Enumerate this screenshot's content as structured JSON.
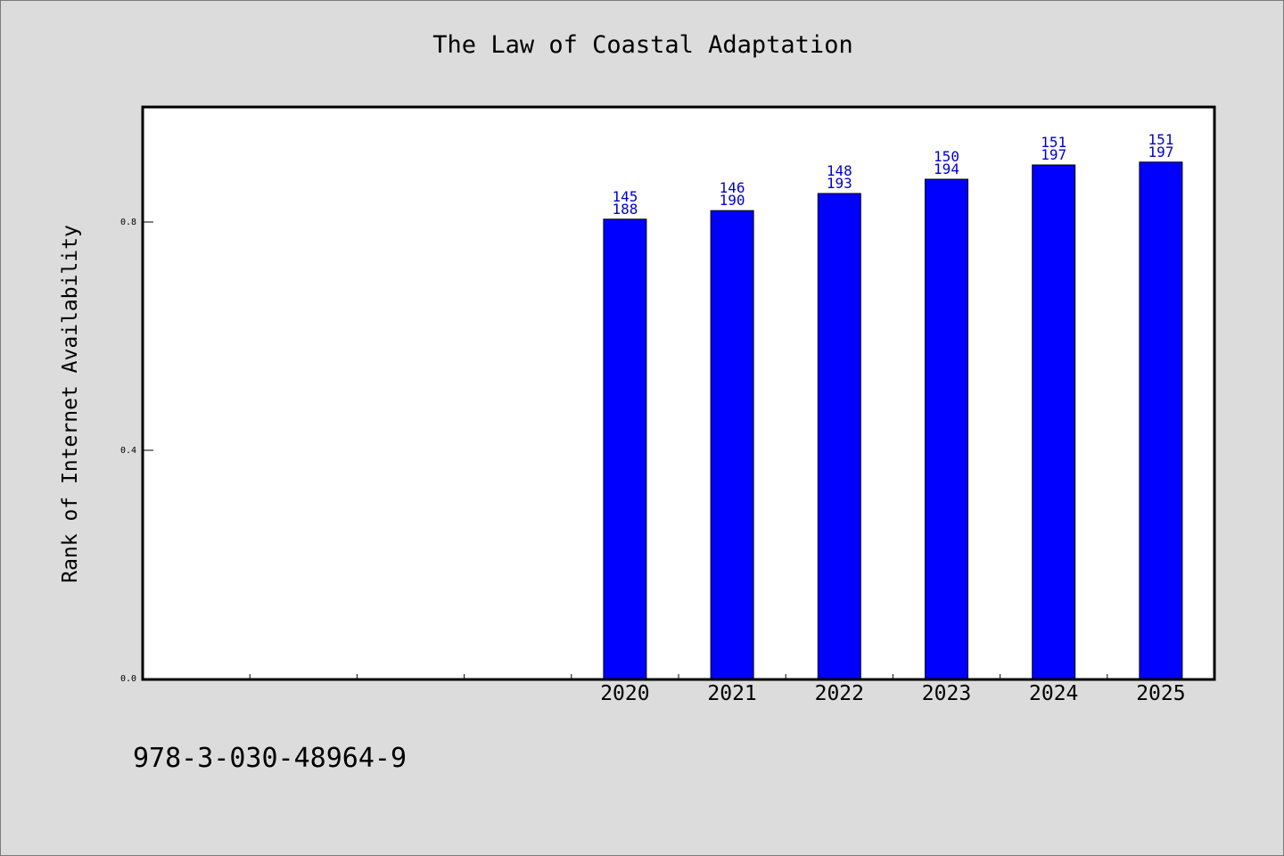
{
  "chart_data": {
    "type": "bar",
    "title": "The Law of Coastal Adaptation",
    "xlabel": "",
    "ylabel": "Rank of Internet Availability",
    "categories": [
      "",
      "",
      "",
      "",
      "2020",
      "2021",
      "2022",
      "2023",
      "2024",
      "2025"
    ],
    "values": [
      null,
      null,
      null,
      null,
      0.805,
      0.82,
      0.85,
      0.875,
      0.9,
      0.905
    ],
    "label_top": [
      "",
      "",
      "",
      "",
      "145",
      "146",
      "148",
      "150",
      "151",
      "151"
    ],
    "label_bottom": [
      "",
      "",
      "",
      "",
      "188",
      "190",
      "193",
      "194",
      "197",
      "197"
    ],
    "yticks": [
      "0.0",
      "0.4",
      "0.8"
    ],
    "ytick_values": [
      0.0,
      0.4,
      0.8
    ],
    "ylim": [
      0,
      1.0
    ],
    "grid": false,
    "colors": {
      "bar": "#0000ff",
      "bar_stroke": "#000000",
      "label": "#0000cc",
      "plot_bg": "#ffffff",
      "page_bg": "#dcdcdc"
    }
  },
  "footer": {
    "code": "978-3-030-48964-9"
  }
}
